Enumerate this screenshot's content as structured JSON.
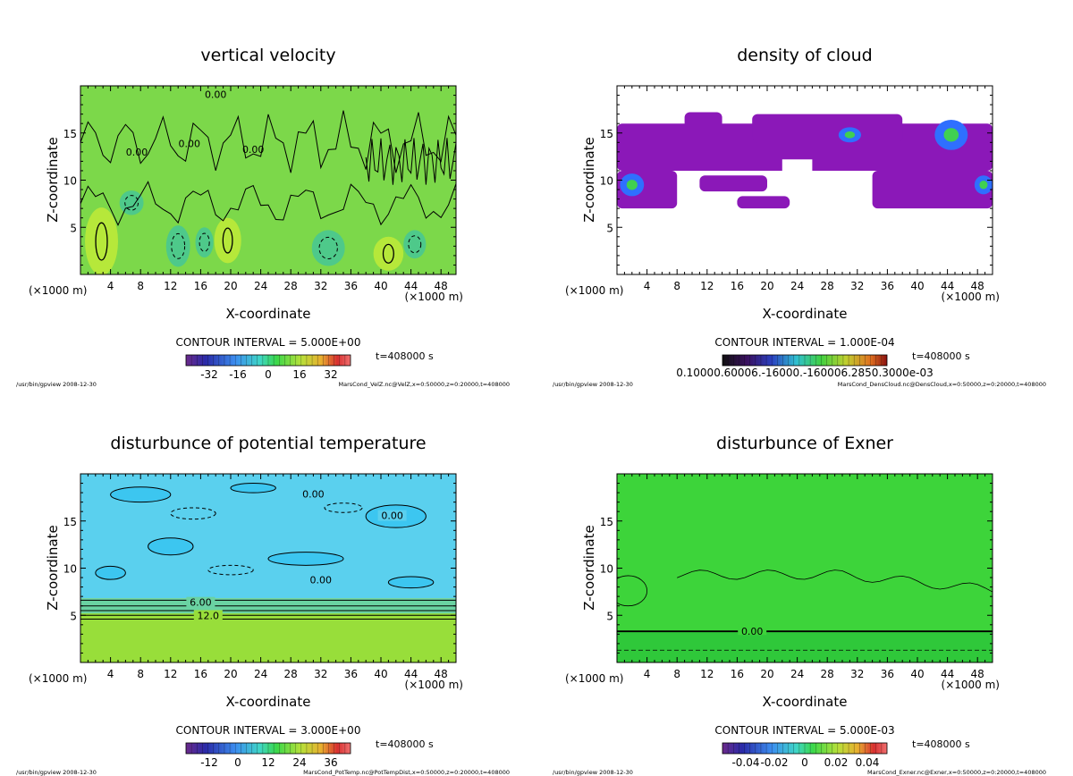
{
  "chart_data": [
    {
      "type": "heatmap",
      "title": "vertical velocity",
      "xlabel": "X-coordinate",
      "ylabel": "Z-coordinate",
      "x_ticks": [
        4,
        8,
        12,
        16,
        20,
        24,
        28,
        32,
        36,
        40,
        44,
        48
      ],
      "y_ticks": [
        5,
        10,
        15
      ],
      "x_unit_left": "(×1000 m)",
      "x_unit_right": "(×1000 m)",
      "xlim": [
        0,
        50
      ],
      "ylim": [
        0,
        20
      ],
      "contour_interval": "CONTOUR INTERVAL = 5.000E+00",
      "time": "t=408000 s",
      "colorbar_ticks": [
        "-32",
        "-16",
        "0",
        "16",
        "32"
      ],
      "contour_labels": [
        "0.00",
        "0.00",
        "0.00",
        "0.00"
      ],
      "footer_left": "/usr/bin/gpview  2008-12-30",
      "footer_right": "MarsCond_VelZ.nc@VelZ,x=0:50000,z=0:20000,t=408000",
      "colors": {
        "background": "#7cd84a",
        "patch_high": "#b6e83a",
        "patch_low": "#4ec98a"
      }
    },
    {
      "type": "heatmap",
      "title": "density of cloud",
      "xlabel": "X-coordinate",
      "ylabel": "Z-coordinate",
      "x_ticks": [
        4,
        8,
        12,
        16,
        20,
        24,
        28,
        32,
        36,
        40,
        44,
        48
      ],
      "y_ticks": [
        5,
        10,
        15
      ],
      "x_unit_left": "(×1000 m)",
      "x_unit_right": "(×1000 m)",
      "xlim": [
        0,
        50
      ],
      "ylim": [
        0,
        20
      ],
      "contour_interval": "CONTOUR INTERVAL = 1.000E-04",
      "time": "t=408000 s",
      "colorbar_ticks": [
        "0.10000.60006.-16000.-160006.2850.3000e-03"
      ],
      "contour_labels": [],
      "footer_left": "/usr/bin/gpview  2008-12-30",
      "footer_right": "MarsCond_DensCloud.nc@DensCloud,x=0:50000,z=0:20000,t=408000",
      "colors": {
        "background": "#ffffff",
        "cloud": "#8b18b8",
        "cloud_high": "#2f6fff"
      }
    },
    {
      "type": "heatmap",
      "title": "disturbunce of potential temperature",
      "xlabel": "X-coordinate",
      "ylabel": "Z-coordinate",
      "x_ticks": [
        4,
        8,
        12,
        16,
        20,
        24,
        28,
        32,
        36,
        40,
        44,
        48
      ],
      "y_ticks": [
        5,
        10,
        15
      ],
      "x_unit_left": "(×1000 m)",
      "x_unit_right": "(×1000 m)",
      "xlim": [
        0,
        50
      ],
      "ylim": [
        0,
        20
      ],
      "contour_interval": "CONTOUR INTERVAL = 3.000E+00",
      "time": "t=408000 s",
      "colorbar_ticks": [
        "-12",
        "0",
        "12",
        "24",
        "36"
      ],
      "contour_labels": [
        "0.00",
        "0.00",
        "0.00",
        "6.00",
        "12.0"
      ],
      "footer_left": "/usr/bin/gpview  2008-12-30",
      "footer_right": "MarsCond_PotTemp.nc@PotTempDist,x=0:50000,z=0:20000,t=408000",
      "colors": {
        "upper": "#5ad0ee",
        "lower": "#98de3a",
        "band": "#6ad2a2"
      }
    },
    {
      "type": "heatmap",
      "title": "disturbunce of Exner",
      "xlabel": "X-coordinate",
      "ylabel": "Z-coordinate",
      "x_ticks": [
        4,
        8,
        12,
        16,
        20,
        24,
        28,
        32,
        36,
        40,
        44,
        48
      ],
      "y_ticks": [
        5,
        10,
        15
      ],
      "x_unit_left": "(×1000 m)",
      "x_unit_right": "(×1000 m)",
      "xlim": [
        0,
        50
      ],
      "ylim": [
        0,
        20
      ],
      "contour_interval": "CONTOUR INTERVAL = 5.000E-03",
      "time": "t=408000 s",
      "colorbar_ticks": [
        "-0.04",
        "-0.02",
        "0",
        "0.02",
        "0.04"
      ],
      "contour_labels": [
        "0.00"
      ],
      "footer_left": "/usr/bin/gpview  2008-12-30",
      "footer_right": "MarsCond_Exner.nc@Exner,x=0:50000,z=0:20000,t=408000",
      "colors": {
        "background": "#3dd43a"
      }
    }
  ]
}
